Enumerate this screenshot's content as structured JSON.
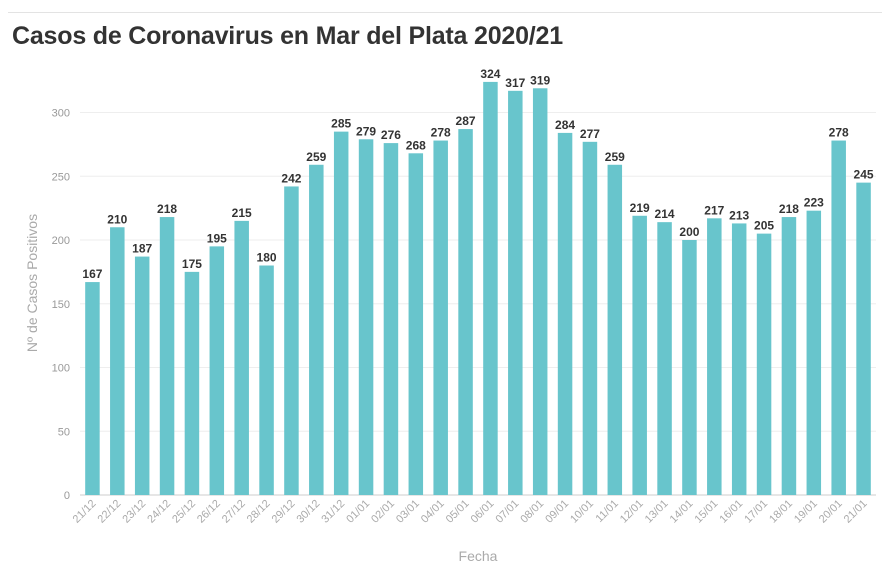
{
  "chart_data": {
    "type": "bar",
    "title": "Casos de Coronavirus en Mar del Plata 2020/21",
    "xlabel": "Fecha",
    "ylabel": "Nº de Casos Positivos",
    "ylim": [
      0,
      340
    ],
    "yticks": [
      0,
      50,
      100,
      150,
      200,
      250,
      300
    ],
    "grid": true,
    "bar_color": "#68c5cc",
    "categories": [
      "21/12",
      "22/12",
      "23/12",
      "24/12",
      "25/12",
      "26/12",
      "27/12",
      "28/12",
      "29/12",
      "30/12",
      "31/12",
      "01/01",
      "02/01",
      "03/01",
      "04/01",
      "05/01",
      "06/01",
      "07/01",
      "08/01",
      "09/01",
      "10/01",
      "11/01",
      "12/01",
      "13/01",
      "14/01",
      "15/01",
      "16/01",
      "17/01",
      "18/01",
      "19/01",
      "20/01",
      "21/01"
    ],
    "values": [
      167,
      210,
      187,
      218,
      175,
      195,
      215,
      180,
      242,
      259,
      285,
      279,
      276,
      268,
      278,
      287,
      324,
      317,
      319,
      284,
      277,
      259,
      219,
      214,
      200,
      217,
      213,
      205,
      218,
      223,
      278,
      245
    ]
  }
}
